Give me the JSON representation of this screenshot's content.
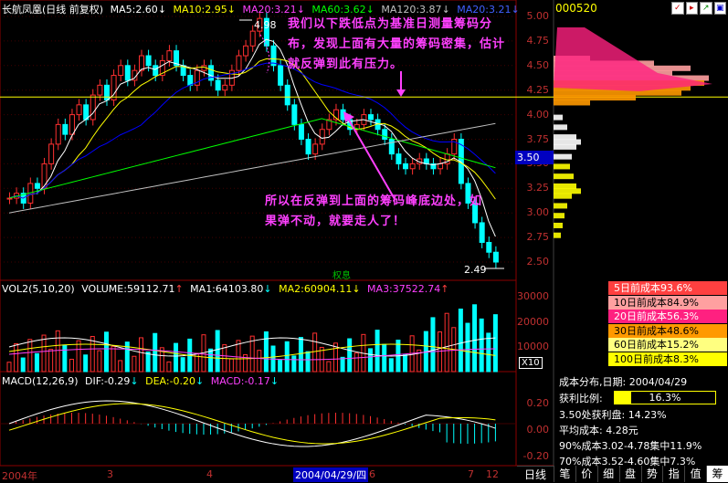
{
  "main_chart": {
    "title": "长航凤凰(日线 前复权)",
    "ma5": "MA5:2.60",
    "ma10": "MA10:2.95",
    "ma20": "MA20:3.21",
    "ma60": "MA60:3.62",
    "ma120": "MA120:3.87",
    "ma20b": "MA20:3.21",
    "y_ticks": [
      "5.00",
      "4.75",
      "4.50",
      "4.25",
      "4.00",
      "3.75",
      "3.50",
      "3.25",
      "3.00",
      "2.75",
      "2.50"
    ],
    "high_label": "4.98",
    "low_label": "2.49",
    "price_marker": "3.50",
    "event_label": "权息"
  },
  "top_right": {
    "code": "000520"
  },
  "annotations": {
    "note1": "我们以下跌低点为基准日测量筹码分布，发现上面有大量的筹码密集，估计就反弹到此有压力。",
    "note2": "所以在反弹到上面的筹码峰底边处，如果弹不动，就要走人了！"
  },
  "volume_panel": {
    "title": "VOL2(5,10,20)",
    "volume": "VOLUME:59112.71",
    "ma1": "MA1:64103.80",
    "ma2": "MA2:60904.11",
    "ma3": "MA3:37522.74",
    "y_ticks": [
      "30000",
      "20000",
      "10000"
    ],
    "unit": "X10"
  },
  "macd_panel": {
    "title": "MACD(12,26,9)",
    "dif": "DIF:-0.29",
    "dea": "DEA:-0.20",
    "macd": "MACD:-0.17",
    "y_ticks": [
      "0.20",
      "0.00",
      "-0.20"
    ]
  },
  "time_axis": {
    "labels": [
      "2004年",
      "3",
      "4",
      "6",
      "7",
      "12"
    ],
    "cursor_date": "2004/04/29/四"
  },
  "cost_legend": [
    {
      "label": "5日前成本93.6%",
      "bg": "#ff4040",
      "fg": "#ffffff"
    },
    {
      "label": "10日前成本84.9%",
      "bg": "#ffa0a0",
      "fg": "#000000"
    },
    {
      "label": "20日前成本56.3%",
      "bg": "#ff2080",
      "fg": "#ffffff"
    },
    {
      "label": "30日前成本48.6%",
      "bg": "#ff9900",
      "fg": "#000000"
    },
    {
      "label": "60日前成本15.2%",
      "bg": "#ffff80",
      "fg": "#000000"
    },
    {
      "label": "100日前成本8.3%",
      "bg": "#ffff00",
      "fg": "#000000"
    }
  ],
  "distribution_info": {
    "title": "成本分布,日期: 2004/04/29",
    "profit_label": "获利比例:",
    "profit_value": "16.3%",
    "profit_fraction": 0.163,
    "profit_at": "3.50处获利盘: 14.23%",
    "avg_cost": "平均成本: 4.28元",
    "c90": "90%成本3.02-4.78集中11.9%",
    "c70": "70%成本3.52-4.60集中7.3%"
  },
  "bottom_tabs": [
    "日线",
    "笔",
    "价",
    "细",
    "盘",
    "势",
    "指",
    "值",
    "筹"
  ],
  "colors": {
    "up_candle": "#ff3030",
    "down_candle": "#00ffff",
    "ma5": "#ffffff",
    "ma10": "#ffff00",
    "ma20": "#0000ff",
    "ma60": "#00ff00",
    "ma120": "#c0c0c0",
    "grid": "#8b0000",
    "resistance_line": "#ffff00"
  }
}
